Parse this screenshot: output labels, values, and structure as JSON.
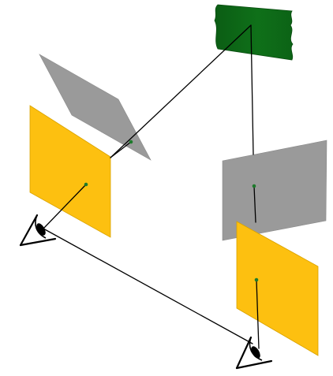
{
  "colors": {
    "background": "#ffffff",
    "flag_dark": "#0b5d14",
    "flag_light": "#1e8a2a",
    "mirror_gray": "#9a9a9a",
    "mirror_gray_stroke": "#8a8a8a",
    "screen_yellow": "#fdc010",
    "screen_yellow_stroke": "#d9a200",
    "point_green": "#1e7a2c",
    "line": "#000000"
  },
  "icons": {
    "object": "flag-icon",
    "viewer": "eye-icon"
  }
}
